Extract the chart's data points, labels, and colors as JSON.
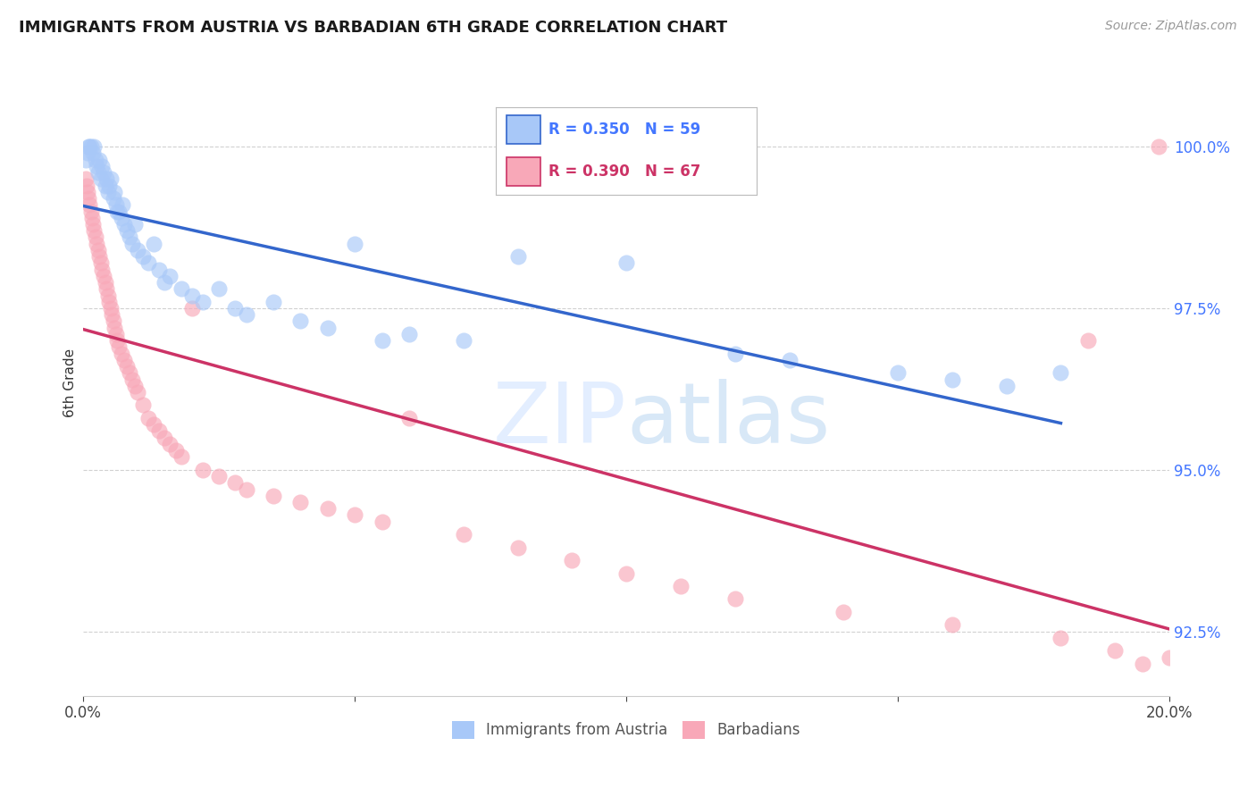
{
  "title": "IMMIGRANTS FROM AUSTRIA VS BARBADIAN 6TH GRADE CORRELATION CHART",
  "source": "Source: ZipAtlas.com",
  "ylabel": "6th Grade",
  "yticks": [
    92.5,
    95.0,
    97.5,
    100.0
  ],
  "ytick_labels": [
    "92.5%",
    "95.0%",
    "97.5%",
    "100.0%"
  ],
  "xlim": [
    0.0,
    20.0
  ],
  "ylim": [
    91.5,
    101.2
  ],
  "watermark_zip": "ZIP",
  "watermark_atlas": "atlas",
  "austria_color": "#a8c8f8",
  "barbadian_color": "#f8a8b8",
  "austria_line_color": "#3366cc",
  "barbadian_line_color": "#cc3366",
  "austria_N": 59,
  "barbadian_N": 67,
  "austria_R": 0.35,
  "barbadian_R": 0.39,
  "austria_legend_text": "R = 0.350   N = 59",
  "barbadian_legend_text": "R = 0.390   N = 67",
  "austria_legend_color": "#4477ff",
  "barbadian_legend_color": "#cc3366",
  "legend_labels": [
    "Immigrants from Austria",
    "Barbadians"
  ],
  "austria_x": [
    0.05,
    0.08,
    0.1,
    0.12,
    0.15,
    0.18,
    0.2,
    0.22,
    0.25,
    0.28,
    0.3,
    0.32,
    0.35,
    0.38,
    0.4,
    0.42,
    0.45,
    0.48,
    0.5,
    0.55,
    0.58,
    0.6,
    0.62,
    0.65,
    0.7,
    0.72,
    0.75,
    0.8,
    0.85,
    0.9,
    0.95,
    1.0,
    1.1,
    1.2,
    1.3,
    1.4,
    1.5,
    1.6,
    1.8,
    2.0,
    2.2,
    2.5,
    2.8,
    3.0,
    3.5,
    4.0,
    4.5,
    5.0,
    5.5,
    6.0,
    7.0,
    8.0,
    10.0,
    12.0,
    13.0,
    15.0,
    16.0,
    17.0,
    18.0
  ],
  "austria_y": [
    99.8,
    99.9,
    100.0,
    100.0,
    100.0,
    99.9,
    100.0,
    99.8,
    99.7,
    99.6,
    99.8,
    99.5,
    99.7,
    99.6,
    99.4,
    99.5,
    99.3,
    99.4,
    99.5,
    99.2,
    99.3,
    99.1,
    99.0,
    99.0,
    98.9,
    99.1,
    98.8,
    98.7,
    98.6,
    98.5,
    98.8,
    98.4,
    98.3,
    98.2,
    98.5,
    98.1,
    97.9,
    98.0,
    97.8,
    97.7,
    97.6,
    97.8,
    97.5,
    97.4,
    97.6,
    97.3,
    97.2,
    98.5,
    97.0,
    97.1,
    97.0,
    98.3,
    98.2,
    96.8,
    96.7,
    96.5,
    96.4,
    96.3,
    96.5
  ],
  "barbadian_x": [
    0.04,
    0.06,
    0.08,
    0.1,
    0.12,
    0.14,
    0.16,
    0.18,
    0.2,
    0.22,
    0.25,
    0.28,
    0.3,
    0.33,
    0.35,
    0.38,
    0.4,
    0.43,
    0.45,
    0.48,
    0.5,
    0.53,
    0.55,
    0.58,
    0.6,
    0.63,
    0.65,
    0.7,
    0.75,
    0.8,
    0.85,
    0.9,
    0.95,
    1.0,
    1.1,
    1.2,
    1.3,
    1.4,
    1.5,
    1.6,
    1.7,
    1.8,
    2.0,
    2.2,
    2.5,
    2.8,
    3.0,
    3.5,
    4.0,
    4.5,
    5.0,
    5.5,
    6.0,
    7.0,
    8.0,
    9.0,
    10.0,
    11.0,
    12.0,
    14.0,
    16.0,
    18.0,
    19.0,
    19.5,
    20.0,
    19.8,
    18.5
  ],
  "barbadian_y": [
    99.5,
    99.4,
    99.3,
    99.2,
    99.1,
    99.0,
    98.9,
    98.8,
    98.7,
    98.6,
    98.5,
    98.4,
    98.3,
    98.2,
    98.1,
    98.0,
    97.9,
    97.8,
    97.7,
    97.6,
    97.5,
    97.4,
    97.3,
    97.2,
    97.1,
    97.0,
    96.9,
    96.8,
    96.7,
    96.6,
    96.5,
    96.4,
    96.3,
    96.2,
    96.0,
    95.8,
    95.7,
    95.6,
    95.5,
    95.4,
    95.3,
    95.2,
    97.5,
    95.0,
    94.9,
    94.8,
    94.7,
    94.6,
    94.5,
    94.4,
    94.3,
    94.2,
    95.8,
    94.0,
    93.8,
    93.6,
    93.4,
    93.2,
    93.0,
    92.8,
    92.6,
    92.4,
    92.2,
    92.0,
    92.1,
    100.0,
    97.0
  ]
}
